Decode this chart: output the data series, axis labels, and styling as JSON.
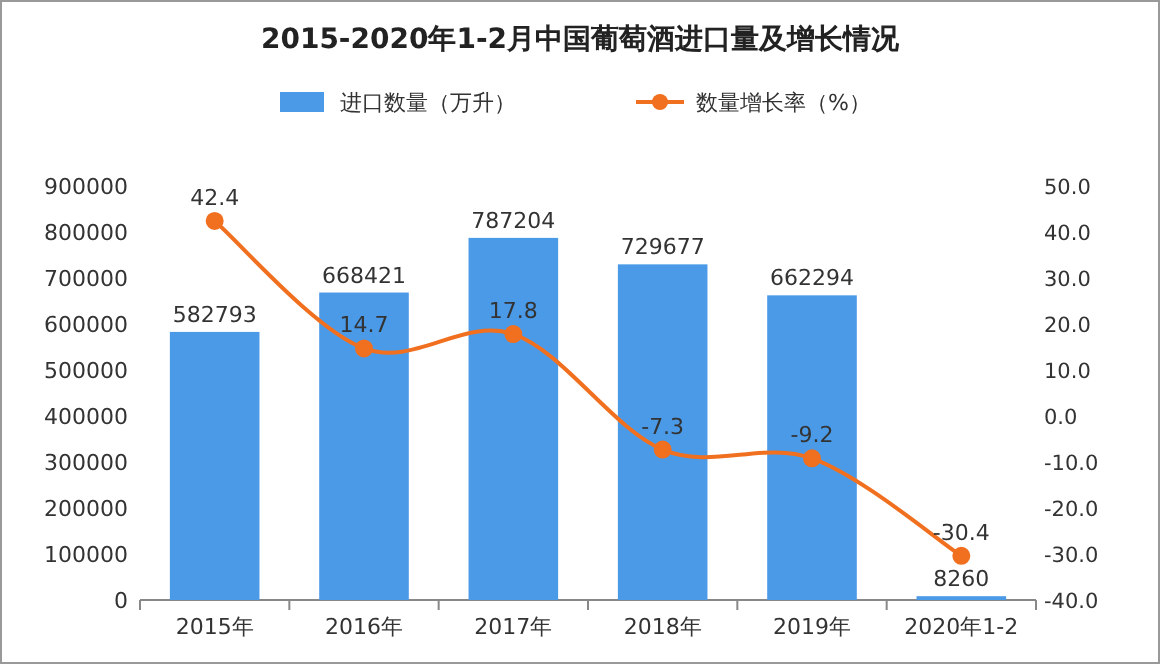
{
  "chart_data": {
    "type": "bar",
    "title": "2015-2020年1-2月中国葡萄酒进口量及增长情况",
    "categories": [
      "2015年",
      "2016年",
      "2017年",
      "2018年",
      "2019年",
      "2020年1-2"
    ],
    "series": [
      {
        "name": "进口数量（万升）",
        "color": "#4a9ae8",
        "values": [
          582793,
          668421,
          787204,
          729677,
          662294,
          8260
        ]
      },
      {
        "name": "数量增长率（%）",
        "type": "line",
        "axis": "y2",
        "color": "#f07020",
        "marker": "circle",
        "values": [
          42.4,
          14.7,
          17.8,
          -7.3,
          -9.2,
          -30.4
        ]
      }
    ],
    "ylim": [
      0,
      900000
    ],
    "yticks": [
      0,
      100000,
      200000,
      300000,
      400000,
      500000,
      600000,
      700000,
      800000,
      900000
    ],
    "y2lim": [
      -40,
      50
    ],
    "y2ticks": [
      {
        "value": -40,
        "label": "-40.0"
      },
      {
        "value": -30,
        "label": "-30.0"
      },
      {
        "value": -20,
        "label": "-20.0"
      },
      {
        "value": -10,
        "label": "-10.0"
      },
      {
        "value": 0,
        "label": "0.0"
      },
      {
        "value": 10,
        "label": "10.0"
      },
      {
        "value": 20,
        "label": "20.0"
      },
      {
        "value": 30,
        "label": "30.0"
      },
      {
        "value": 40,
        "label": "40.0"
      },
      {
        "value": 50,
        "label": "50.0"
      }
    ],
    "data_labels": true,
    "legend": "top"
  }
}
